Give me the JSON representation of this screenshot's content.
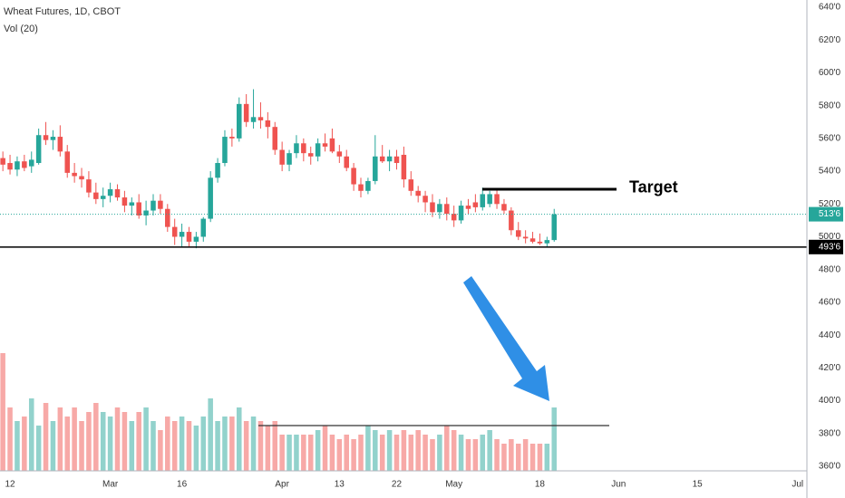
{
  "chart_data": {
    "type": "candlestick",
    "title": "Wheat Futures, 1D, CBOT",
    "volume_title": "Vol (20)",
    "open": [
      548,
      545,
      541,
      546,
      543,
      545,
      562,
      559,
      561,
      552,
      539,
      537,
      535,
      527,
      523,
      525,
      529,
      524,
      519,
      521,
      513,
      516,
      522,
      517,
      506,
      500,
      503,
      497,
      500,
      511,
      536,
      545,
      561,
      560,
      581,
      570,
      573,
      571,
      567,
      553,
      544,
      551,
      557,
      551,
      549,
      557,
      560,
      552,
      549,
      542,
      532,
      528,
      534,
      549,
      546,
      549,
      550,
      535,
      528,
      525,
      521,
      515,
      520,
      514,
      510,
      519,
      521,
      518,
      520,
      526,
      520,
      516,
      504,
      500,
      499,
      497,
      496,
      498
    ],
    "high": [
      552,
      550,
      549,
      550,
      552,
      566,
      570,
      565,
      568,
      556,
      545,
      542,
      540,
      533,
      530,
      533,
      532,
      528,
      524,
      526,
      522,
      526,
      526,
      520,
      511,
      508,
      506,
      503,
      512,
      540,
      548,
      565,
      566,
      585,
      587,
      590,
      582,
      576,
      570,
      558,
      553,
      562,
      560,
      555,
      560,
      563,
      566,
      556,
      553,
      545,
      536,
      536,
      562,
      556,
      553,
      553,
      555,
      540,
      531,
      528,
      526,
      523,
      524,
      519,
      522,
      523,
      526,
      530,
      528,
      529,
      523,
      518,
      509,
      504,
      503,
      502,
      500,
      517
    ],
    "low": [
      540,
      538,
      537,
      540,
      539,
      544,
      556,
      553,
      549,
      536,
      533,
      530,
      524,
      520,
      518,
      521,
      522,
      515,
      513,
      511,
      507,
      513,
      514,
      503,
      495,
      494,
      494,
      493,
      497,
      509,
      533,
      543,
      555,
      558,
      567,
      566,
      566,
      560,
      550,
      540,
      540,
      548,
      546,
      544,
      546,
      552,
      551,
      545,
      540,
      528,
      524,
      526,
      532,
      545,
      540,
      541,
      530,
      525,
      521,
      515,
      512,
      511,
      510,
      506,
      508,
      514,
      515,
      516,
      518,
      517,
      514,
      501,
      498,
      496,
      496,
      495,
      494,
      497
    ],
    "close": [
      544,
      541,
      546,
      542,
      547,
      562,
      559,
      561,
      552,
      539,
      537,
      535,
      527,
      523,
      525,
      529,
      524,
      519,
      521,
      513,
      516,
      522,
      517,
      506,
      500,
      503,
      497,
      500,
      511,
      536,
      545,
      561,
      560,
      581,
      570,
      573,
      571,
      567,
      553,
      544,
      551,
      557,
      551,
      549,
      557,
      555,
      552,
      549,
      542,
      532,
      528,
      534,
      549,
      546,
      549,
      545,
      535,
      528,
      525,
      521,
      515,
      520,
      514,
      510,
      519,
      517,
      518,
      526,
      526,
      520,
      516,
      504,
      500,
      499,
      497,
      496,
      498,
      513.75
    ],
    "volume": [
      130,
      70,
      55,
      60,
      80,
      50,
      75,
      55,
      70,
      60,
      70,
      55,
      65,
      75,
      65,
      60,
      70,
      65,
      55,
      65,
      70,
      55,
      45,
      60,
      55,
      60,
      55,
      50,
      60,
      80,
      55,
      60,
      60,
      70,
      55,
      60,
      55,
      50,
      55,
      40,
      40,
      40,
      40,
      40,
      45,
      50,
      40,
      35,
      40,
      35,
      40,
      50,
      45,
      40,
      45,
      40,
      45,
      40,
      45,
      40,
      35,
      40,
      50,
      45,
      40,
      35,
      35,
      40,
      45,
      35,
      30,
      35,
      30,
      35,
      30,
      30,
      30,
      70
    ],
    "up_color": "#26a69a",
    "down_color": "#ef5350",
    "xlim": [
      -0.4,
      112.3
    ],
    "xticks": [
      {
        "value": 1,
        "label": "12"
      },
      {
        "value": 15,
        "label": "Mar"
      },
      {
        "value": 25,
        "label": "16"
      },
      {
        "value": 39,
        "label": "Apr"
      },
      {
        "value": 47,
        "label": "13"
      },
      {
        "value": 55,
        "label": "22"
      },
      {
        "value": 63,
        "label": "May"
      },
      {
        "value": 75,
        "label": "18"
      },
      {
        "value": 86,
        "label": "Jun"
      },
      {
        "value": 97,
        "label": "15"
      },
      {
        "value": 111,
        "label": "Jul"
      }
    ],
    "ylim": [
      360,
      640
    ],
    "yticks": [
      {
        "value": 640,
        "label": "640'0"
      },
      {
        "value": 620,
        "label": "620'0"
      },
      {
        "value": 600,
        "label": "600'0"
      },
      {
        "value": 580,
        "label": "580'0"
      },
      {
        "value": 560,
        "label": "560'0"
      },
      {
        "value": 540,
        "label": "540'0"
      },
      {
        "value": 520,
        "label": "520'0"
      },
      {
        "value": 500,
        "label": "500'0"
      },
      {
        "value": 480,
        "label": "480'0"
      },
      {
        "value": 460,
        "label": "460'0"
      },
      {
        "value": 440,
        "label": "440'0"
      },
      {
        "value": 420,
        "label": "420'0"
      },
      {
        "value": 400,
        "label": "400'0"
      },
      {
        "value": 380,
        "label": "380'0"
      },
      {
        "value": 360,
        "label": "360'0"
      }
    ],
    "last_price": {
      "value": 513.75,
      "label": "513'6"
    },
    "support": {
      "value": 493.75,
      "label": "493'6"
    },
    "target": {
      "value": 529,
      "label": "Target"
    },
    "volume_level": 50,
    "grid": true
  }
}
